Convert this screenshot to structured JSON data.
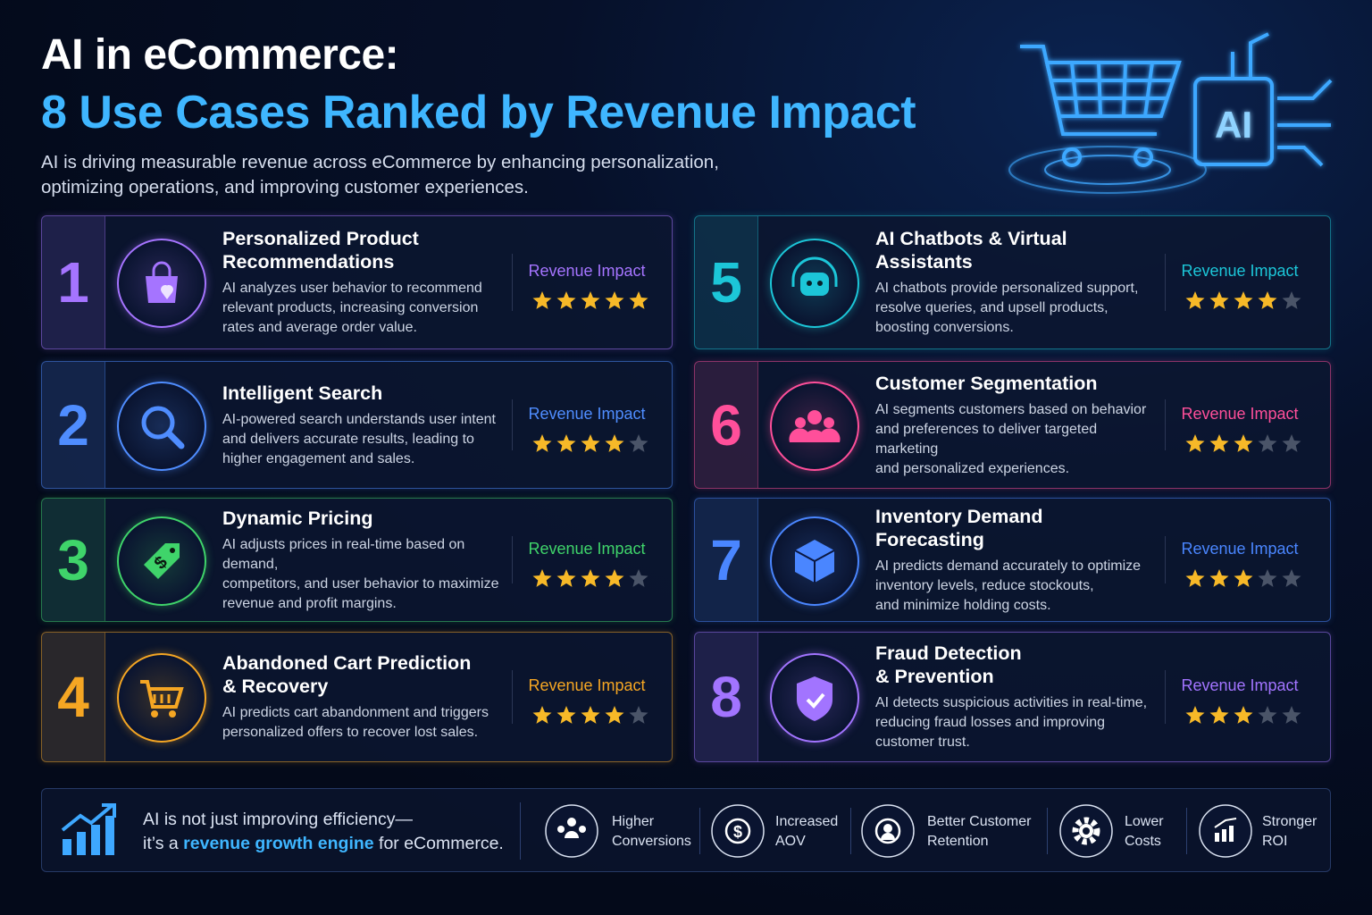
{
  "header": {
    "title": "AI in eCommerce:",
    "subtitle": "8 Use Cases Ranked by Revenue Impact",
    "intro": [
      "AI is driving measurable revenue across eCommerce by enhancing personalization,",
      "optimizing operations, and improving customer experiences."
    ],
    "badge": "AI"
  },
  "max_rating": 5,
  "cards": [
    {
      "number": "1",
      "title": [
        "Personalized Product",
        "Recommendations"
      ],
      "description": [
        "AI analyzes user behavior to recommend",
        "relevant products, increasing conversion",
        "rates and average order value."
      ],
      "label": "Revenue Impact",
      "rating": 5,
      "color": "#a574ff"
    },
    {
      "number": "2",
      "title": [
        "Intelligent Search"
      ],
      "description": [
        "AI-powered search understands user intent",
        "and delivers accurate results, leading to",
        "higher engagement and sales."
      ],
      "label": "Revenue Impact",
      "rating": 4,
      "color": "#4f8dff"
    },
    {
      "number": "3",
      "title": [
        "Dynamic Pricing"
      ],
      "description": [
        "AI adjusts prices in real-time based on demand,",
        "competitors, and user behavior to maximize",
        "revenue and profit margins."
      ],
      "label": "Revenue Impact",
      "rating": 4,
      "color": "#3fd46a"
    },
    {
      "number": "4",
      "title": [
        "Abandoned Cart Prediction",
        "& Recovery"
      ],
      "description": [
        "AI predicts cart abandonment and triggers",
        "personalized offers to recover lost sales."
      ],
      "label": "Revenue Impact",
      "rating": 4,
      "color": "#f5a623"
    },
    {
      "number": "5",
      "title": [
        "AI Chatbots & Virtual",
        "Assistants"
      ],
      "description": [
        "AI chatbots provide personalized support,",
        "resolve queries, and upsell products,",
        "boosting conversions."
      ],
      "label": "Revenue Impact",
      "rating": 4,
      "color": "#1cc6d8"
    },
    {
      "number": "6",
      "title": [
        "Customer Segmentation"
      ],
      "description": [
        "AI segments customers based on behavior",
        "and preferences to deliver targeted marketing",
        "and personalized experiences."
      ],
      "label": "Revenue Impact",
      "rating": 3,
      "color": "#ff4f9a"
    },
    {
      "number": "7",
      "title": [
        "Inventory Demand",
        "Forecasting"
      ],
      "description": [
        "AI predicts demand accurately to optimize",
        "inventory levels, reduce stockouts,",
        "and minimize holding costs."
      ],
      "label": "Revenue Impact",
      "rating": 3,
      "color": "#4a86ff"
    },
    {
      "number": "8",
      "title": [
        "Fraud Detection",
        "& Prevention"
      ],
      "description": [
        "AI detects suspicious activities in real-time,",
        "reducing fraud losses and improving",
        "customer trust."
      ],
      "label": "Revenue Impact",
      "rating": 3,
      "color": "#a274ff"
    }
  ],
  "footer": {
    "line1": "AI is not just improving efficiency—",
    "line2_before": "it’s a ",
    "line2_highlight": "revenue growth engine",
    "line2_after": " for eCommerce.",
    "benefits": [
      [
        "Higher",
        "Conversions"
      ],
      [
        "Increased",
        "AOV"
      ],
      [
        "Better Customer",
        "Retention"
      ],
      [
        "Lower",
        "Costs"
      ],
      [
        "Stronger",
        "ROI"
      ]
    ]
  }
}
